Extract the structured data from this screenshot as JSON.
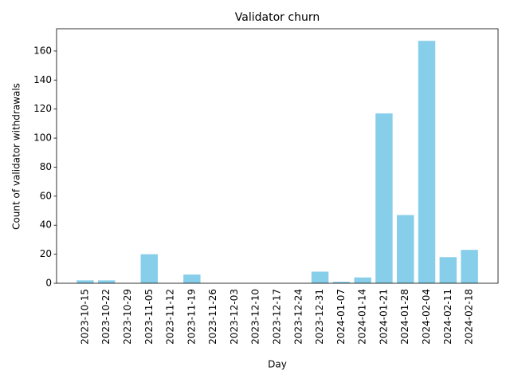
{
  "chart_data": {
    "type": "bar",
    "title": "Validator churn",
    "x_label": "Day",
    "y_label": "Count of validator withdrawals",
    "categories": [
      "2023-10-15",
      "2023-10-22",
      "2023-10-29",
      "2023-11-05",
      "2023-11-12",
      "2023-11-19",
      "2023-11-26",
      "2023-12-03",
      "2023-12-10",
      "2023-12-17",
      "2023-12-24",
      "2023-12-31",
      "2024-01-07",
      "2024-01-14",
      "2024-01-21",
      "2024-01-28",
      "2024-02-04",
      "2024-02-11",
      "2024-02-18"
    ],
    "values": [
      2,
      2,
      0,
      20,
      0,
      6,
      0,
      0,
      0,
      0,
      0,
      8,
      1,
      4,
      117,
      47,
      167,
      18,
      23
    ],
    "color": "#87ceeb",
    "ylim": [
      0,
      175.35
    ],
    "yticks": [
      0,
      20,
      40,
      60,
      80,
      100,
      120,
      140,
      160
    ],
    "grid": false
  }
}
